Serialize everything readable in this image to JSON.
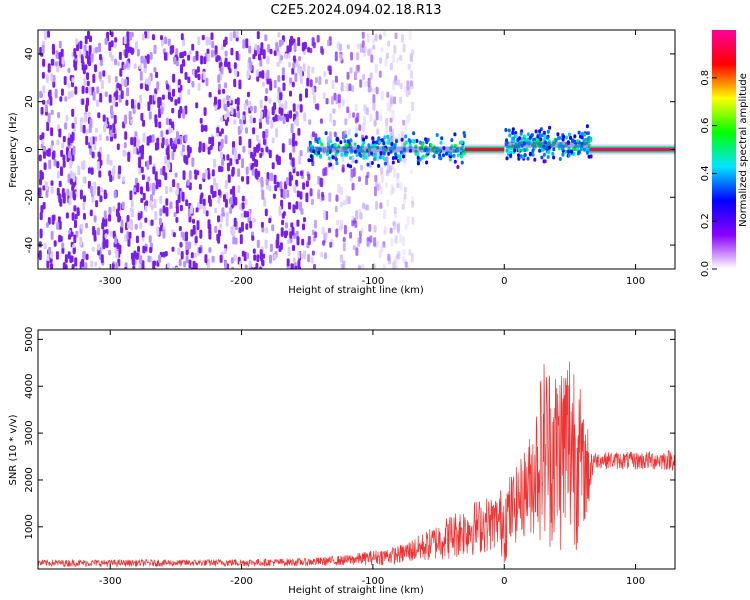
{
  "title": "C2E5.2024.094.02.18.R13",
  "chart_data": [
    {
      "type": "heatmap",
      "xlabel": "Height of straight line (km)",
      "ylabel": "Frequency (Hz)",
      "xlim": [
        -355,
        130
      ],
      "ylim": [
        -50,
        50
      ],
      "x_ticks": [
        -300,
        -200,
        -100,
        0,
        100
      ],
      "y_ticks": [
        -40,
        -20,
        0,
        20,
        40
      ],
      "x_tick_labels": [
        "-300",
        "-200",
        "-100",
        "0",
        "100"
      ],
      "y_tick_labels": [
        "-40",
        "-20",
        "0",
        "20",
        "40"
      ],
      "colorbar": {
        "label": "Normalized spectral amplitude",
        "range": [
          0,
          1
        ],
        "ticks": [
          0.0,
          0.2,
          0.4,
          0.6,
          0.8
        ],
        "tick_labels": [
          "0.0",
          "0.2",
          "0.4",
          "0.6",
          "0.8"
        ],
        "colormap": [
          "#ffffff",
          "#8a00ff",
          "#0000ff",
          "#00e5ff",
          "#00ff00",
          "#ffff00",
          "#ff0000",
          "#ff00a0"
        ]
      },
      "regions": [
        {
          "x_range": [
            -355,
            -150
          ],
          "freq_range": [
            -50,
            50
          ],
          "amplitude": 0.05,
          "pattern": "noise"
        },
        {
          "x_range": [
            -150,
            -70
          ],
          "freq_range": [
            -50,
            50
          ],
          "amplitude": 0.02,
          "pattern": "fading-noise"
        },
        {
          "x_range": [
            -150,
            -30
          ],
          "freq_range": [
            -8,
            8
          ],
          "amplitude": 0.25,
          "pattern": "band"
        },
        {
          "x_range": [
            -30,
            0
          ],
          "freq_range": [
            -2,
            2
          ],
          "amplitude": 0.9,
          "pattern": "carrier"
        },
        {
          "x_range": [
            0,
            65
          ],
          "freq_range": [
            -6,
            10
          ],
          "amplitude": 0.3,
          "pattern": "band"
        },
        {
          "x_range": [
            65,
            130
          ],
          "freq_range": [
            -1,
            1
          ],
          "amplitude": 0.95,
          "pattern": "carrier"
        }
      ]
    },
    {
      "type": "line",
      "xlabel": "Height of straight line (km)",
      "ylabel": "SNR (10 * v/v)",
      "xlim": [
        -355,
        130
      ],
      "ylim": [
        100,
        5200
      ],
      "x_ticks": [
        -300,
        -200,
        -100,
        0,
        100
      ],
      "y_ticks": [
        1000,
        2000,
        3000,
        4000,
        5000
      ],
      "x_tick_labels": [
        "-300",
        "-200",
        "-100",
        "0",
        "100"
      ],
      "y_tick_labels": [
        "1000",
        "2000",
        "3000",
        "4000",
        "5000"
      ],
      "series": [
        {
          "color": "#ee3333",
          "envelope": [
            {
              "x": -355,
              "low": 150,
              "high": 300
            },
            {
              "x": -250,
              "low": 150,
              "high": 300
            },
            {
              "x": -150,
              "low": 160,
              "high": 330
            },
            {
              "x": -120,
              "low": 170,
              "high": 400
            },
            {
              "x": -100,
              "low": 180,
              "high": 500
            },
            {
              "x": -80,
              "low": 200,
              "high": 600
            },
            {
              "x": -60,
              "low": 250,
              "high": 900
            },
            {
              "x": -40,
              "low": 300,
              "high": 1300
            },
            {
              "x": -20,
              "low": 400,
              "high": 1600
            },
            {
              "x": -5,
              "low": 500,
              "high": 1700
            },
            {
              "x": 0,
              "low": 200,
              "high": 2000
            },
            {
              "x": 10,
              "low": 700,
              "high": 2300
            },
            {
              "x": 20,
              "low": 800,
              "high": 3000
            },
            {
              "x": 30,
              "low": 600,
              "high": 4700
            },
            {
              "x": 40,
              "low": 400,
              "high": 4500
            },
            {
              "x": 50,
              "low": 300,
              "high": 5100
            },
            {
              "x": 55,
              "low": 500,
              "high": 4800
            },
            {
              "x": 60,
              "low": 900,
              "high": 3400
            },
            {
              "x": 66,
              "low": 1400,
              "high": 3000
            },
            {
              "x": 68,
              "low": 2250,
              "high": 2600
            },
            {
              "x": 100,
              "low": 2200,
              "high": 2600
            },
            {
              "x": 130,
              "low": 2200,
              "high": 2650
            }
          ]
        }
      ]
    }
  ]
}
